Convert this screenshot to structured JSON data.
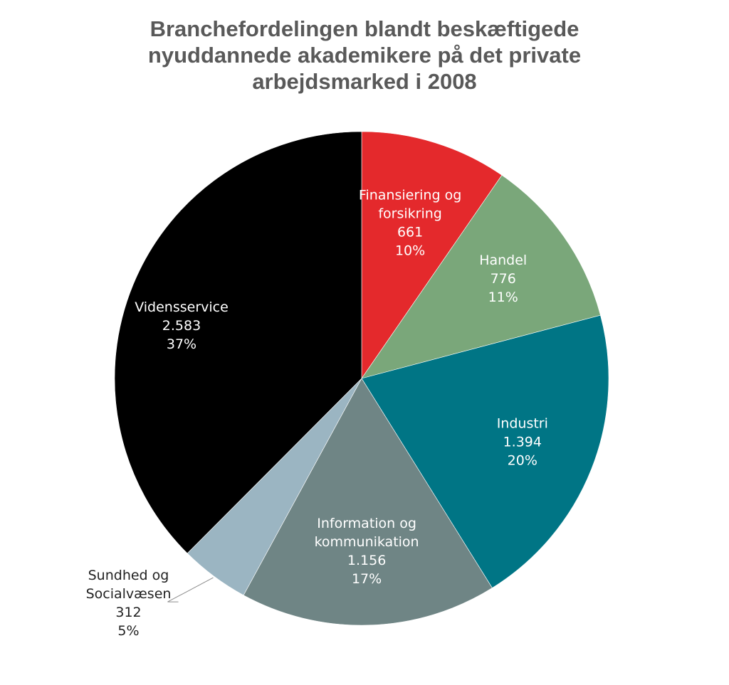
{
  "chart_data": {
    "type": "pie",
    "title_lines": [
      "Branchefordelingen blandt beskæftigede",
      "nyuddannede akademikere på det private",
      "arbejdsmarked i 2008"
    ],
    "slices": [
      {
        "name_lines": [
          "Finansiering og",
          "forsikring"
        ],
        "value": 661,
        "value_label": "661",
        "percent_label": "10%",
        "color": "#e4292c",
        "label_color": "#ffffff"
      },
      {
        "name_lines": [
          "Handel"
        ],
        "value": 776,
        "value_label": "776",
        "percent_label": "11%",
        "color": "#7aa77a",
        "label_color": "#ffffff"
      },
      {
        "name_lines": [
          "Industri"
        ],
        "value": 1394,
        "value_label": "1.394",
        "percent_label": "20%",
        "color": "#007585",
        "label_color": "#ffffff"
      },
      {
        "name_lines": [
          "Information og",
          "kommunikation"
        ],
        "value": 1156,
        "value_label": "1.156",
        "percent_label": "17%",
        "color": "#6f8585",
        "label_color": "#ffffff"
      },
      {
        "name_lines": [
          "Sundhed og",
          "Socialvæsen"
        ],
        "value": 312,
        "value_label": "312",
        "percent_label": "5%",
        "color": "#9bb5c2",
        "label_color": "#222222",
        "label_outside": true
      },
      {
        "name_lines": [
          "Vidensservice"
        ],
        "value": 2583,
        "value_label": "2.583",
        "percent_label": "37%",
        "color": "#000000",
        "label_color": "#ffffff"
      }
    ],
    "start_angle": "12 o'clock",
    "direction": "clockwise",
    "legend": "none"
  }
}
